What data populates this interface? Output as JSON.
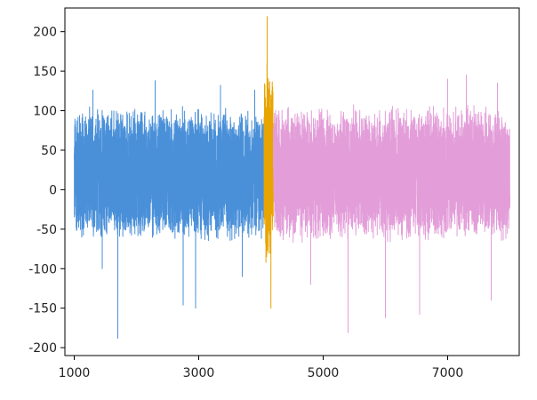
{
  "chart_data": {
    "type": "line",
    "title": "",
    "xlabel": "",
    "ylabel": "",
    "xlim": [
      850,
      8150
    ],
    "ylim": [
      -210,
      230
    ],
    "xticks": [
      1000,
      3000,
      5000,
      7000
    ],
    "yticks": [
      -200,
      -150,
      -100,
      -50,
      0,
      50,
      100,
      150,
      200
    ],
    "xtick_labels": [
      "1000",
      "3000",
      "5000",
      "7000"
    ],
    "ytick_labels": [
      "-200",
      "-150",
      "-100",
      "-50",
      "0",
      "50",
      "100",
      "150",
      "200"
    ],
    "grid": false,
    "legend": "none",
    "series": [
      {
        "color": "#4a90d9",
        "x_range": [
          1000,
          4050
        ],
        "typical_range": [
          -60,
          100
        ],
        "peaks": [
          {
            "x": 1300,
            "y": 126
          },
          {
            "x": 1700,
            "y": -188
          },
          {
            "x": 1450,
            "y": -100
          },
          {
            "x": 2300,
            "y": 138
          },
          {
            "x": 2750,
            "y": -146
          },
          {
            "x": 2950,
            "y": -150
          },
          {
            "x": 3350,
            "y": 132
          },
          {
            "x": 3700,
            "y": -110
          },
          {
            "x": 3900,
            "y": 126
          }
        ]
      },
      {
        "color": "#e8a400",
        "x_range": [
          4050,
          4200
        ],
        "typical_range": [
          -80,
          150
        ],
        "peaks": [
          {
            "x": 4100,
            "y": 219
          },
          {
            "x": 4160,
            "y": -150
          },
          {
            "x": 4080,
            "y": -92
          }
        ]
      },
      {
        "color": "#e39ed9",
        "x_range": [
          4200,
          8000
        ],
        "typical_range": [
          -60,
          100
        ],
        "peaks": [
          {
            "x": 5400,
            "y": -181
          },
          {
            "x": 6000,
            "y": -162
          },
          {
            "x": 6550,
            "y": -158
          },
          {
            "x": 7300,
            "y": 145
          },
          {
            "x": 7000,
            "y": 140
          },
          {
            "x": 7700,
            "y": -140
          },
          {
            "x": 7800,
            "y": 135
          },
          {
            "x": 4800,
            "y": -120
          }
        ]
      }
    ]
  }
}
